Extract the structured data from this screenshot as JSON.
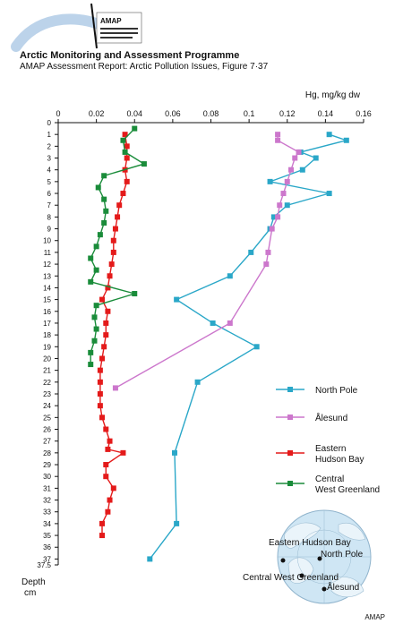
{
  "header": {
    "logo_text": "AMAP",
    "title": "Arctic Monitoring and Assessment Programme",
    "subtitle": "AMAP Assessment Report: Arctic Pollution Issues, Figure 7·37"
  },
  "credit": "AMAP",
  "map": {
    "labels": [
      "Eastern Hudson Bay",
      "North Pole",
      "Central West Greenland",
      "Ålesund"
    ]
  },
  "chart_data": {
    "type": "line",
    "title": "",
    "xlabel": "Hg, mg/kg dw",
    "ylabel": "Depth cm",
    "xlim": [
      0,
      0.16
    ],
    "ylim": [
      0,
      37.5
    ],
    "x_ticks": [
      "0",
      "0.02",
      "0.04",
      "0.06",
      "0.08",
      "0.1",
      "0.12",
      "0.14",
      "0.16"
    ],
    "y_ticks": [
      "0",
      "1",
      "2",
      "3",
      "4",
      "5",
      "6",
      "7",
      "8",
      "9",
      "10",
      "11",
      "12",
      "13",
      "14",
      "15",
      "16",
      "17",
      "18",
      "19",
      "20",
      "21",
      "22",
      "23",
      "24",
      "25",
      "26",
      "27",
      "28",
      "29",
      "30",
      "31",
      "32",
      "33",
      "34",
      "35",
      "36",
      "37",
      "37.5"
    ],
    "y_axis": "inverted",
    "grid": false,
    "legend_position": "right",
    "series": [
      {
        "name": "North Pole",
        "color": "#2aa7c8",
        "marker": "square",
        "points": [
          [
            0.142,
            1
          ],
          [
            0.151,
            1.5
          ],
          [
            0.127,
            2.5
          ],
          [
            0.135,
            3
          ],
          [
            0.128,
            4
          ],
          [
            0.111,
            5
          ],
          [
            0.142,
            6
          ],
          [
            0.12,
            7
          ],
          [
            0.113,
            8
          ],
          [
            0.111,
            9
          ],
          [
            0.101,
            11
          ],
          [
            0.09,
            13
          ],
          [
            0.062,
            15
          ],
          [
            0.081,
            17
          ],
          [
            0.104,
            19
          ],
          [
            0.073,
            22
          ],
          [
            0.061,
            28
          ],
          [
            0.062,
            34
          ],
          [
            0.048,
            37
          ]
        ]
      },
      {
        "name": "Ålesund",
        "color": "#cc77cc",
        "marker": "square",
        "points": [
          [
            0.115,
            1
          ],
          [
            0.115,
            1.5
          ],
          [
            0.126,
            2.5
          ],
          [
            0.124,
            3
          ],
          [
            0.122,
            4
          ],
          [
            0.12,
            5
          ],
          [
            0.118,
            6
          ],
          [
            0.116,
            7
          ],
          [
            0.115,
            8
          ],
          [
            0.112,
            9
          ],
          [
            0.11,
            11
          ],
          [
            0.109,
            12
          ],
          [
            0.09,
            17
          ],
          [
            0.03,
            22.5
          ]
        ]
      },
      {
        "name": "Eastern Hudson Bay",
        "color": "#e41a1a",
        "marker": "square",
        "points": [
          [
            0.035,
            1
          ],
          [
            0.036,
            2
          ],
          [
            0.036,
            3
          ],
          [
            0.035,
            4
          ],
          [
            0.036,
            5
          ],
          [
            0.034,
            6
          ],
          [
            0.032,
            7
          ],
          [
            0.031,
            8
          ],
          [
            0.03,
            9
          ],
          [
            0.029,
            10
          ],
          [
            0.029,
            11
          ],
          [
            0.028,
            12
          ],
          [
            0.027,
            13
          ],
          [
            0.026,
            14
          ],
          [
            0.023,
            15
          ],
          [
            0.026,
            16
          ],
          [
            0.025,
            17
          ],
          [
            0.025,
            18
          ],
          [
            0.024,
            19
          ],
          [
            0.023,
            20
          ],
          [
            0.022,
            21
          ],
          [
            0.022,
            22
          ],
          [
            0.022,
            23
          ],
          [
            0.022,
            24
          ],
          [
            0.023,
            25
          ],
          [
            0.025,
            26
          ],
          [
            0.027,
            27
          ],
          [
            0.026,
            27.7
          ],
          [
            0.034,
            28
          ],
          [
            0.025,
            29
          ],
          [
            0.025,
            30
          ],
          [
            0.029,
            31
          ],
          [
            0.027,
            32
          ],
          [
            0.026,
            33
          ],
          [
            0.023,
            34
          ],
          [
            0.023,
            35
          ]
        ]
      },
      {
        "name": "Central West Greenland",
        "color": "#1a8c3a",
        "marker": "square",
        "points": [
          [
            0.04,
            0.5
          ],
          [
            0.034,
            1.5
          ],
          [
            0.035,
            2.5
          ],
          [
            0.045,
            3.5
          ],
          [
            0.024,
            4.5
          ],
          [
            0.021,
            5.5
          ],
          [
            0.024,
            6.5
          ],
          [
            0.025,
            7.5
          ],
          [
            0.024,
            8.5
          ],
          [
            0.022,
            9.5
          ],
          [
            0.02,
            10.5
          ],
          [
            0.017,
            11.5
          ],
          [
            0.02,
            12.5
          ],
          [
            0.017,
            13.5
          ],
          [
            0.04,
            14.5
          ],
          [
            0.02,
            15.5
          ],
          [
            0.019,
            16.5
          ],
          [
            0.02,
            17.5
          ],
          [
            0.019,
            18.5
          ],
          [
            0.017,
            19.5
          ],
          [
            0.017,
            20.5
          ]
        ]
      }
    ]
  }
}
